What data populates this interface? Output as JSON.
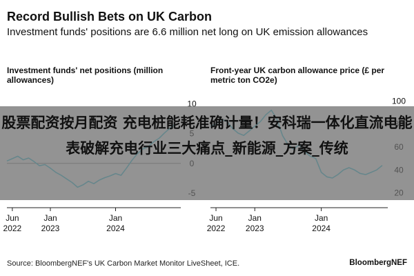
{
  "header": {
    "title": "Record Bullish Bets on UK Carbon",
    "subtitle": "Investment funds' positions are 6.6 million net long on UK emission allowances"
  },
  "overlay": {
    "text": "股票配资按月配资 充电桩能耗准确计量！安科瑞一体化直流电能表破解充电行业三大痛点_新能源_方案_传统"
  },
  "footer": {
    "source": "Source: BloombergNEF's UK Carbon Market Monitor LiveSheet, ICE.",
    "brand": "BloombergNEF"
  },
  "colors": {
    "line": "#5fd0e3",
    "axis": "#222222",
    "zero_line": "#9a9a9a"
  },
  "chart_data": [
    {
      "type": "line",
      "title": "Investment funds' net positions (million allowances)",
      "x_ticks": [
        "Jun 2022",
        "Jan 2023",
        "Jan 2024"
      ],
      "y_ticks": [
        "10",
        "5",
        "0",
        "-5"
      ],
      "ylim": [
        -6.5,
        12
      ],
      "x_range": [
        "2022-05",
        "2025-01"
      ],
      "grid": false,
      "series": [
        {
          "x": [
            "2022-05",
            "2022-06",
            "2022-07",
            "2022-08",
            "2022-09",
            "2022-10",
            "2022-11",
            "2022-12",
            "2023-01",
            "2023-02",
            "2023-03",
            "2023-04",
            "2023-05",
            "2023-06",
            "2023-07",
            "2023-08",
            "2023-09",
            "2023-10",
            "2023-11",
            "2023-12",
            "2024-01",
            "2024-02",
            "2024-03",
            "2024-04",
            "2024-05",
            "2024-06",
            "2024-07",
            "2024-08",
            "2024-09",
            "2024-10",
            "2024-11",
            "2024-12"
          ],
          "values": [
            0.4,
            0.8,
            1.2,
            0.6,
            0.9,
            0.3,
            -0.4,
            -0.2,
            -0.8,
            -1.5,
            -2.0,
            -2.6,
            -3.2,
            -4.0,
            -3.6,
            -3.0,
            -3.4,
            -2.8,
            -2.4,
            -2.1,
            -1.7,
            -2.0,
            -0.8,
            0.5,
            1.6,
            2.4,
            2.8,
            3.6,
            4.2,
            5.1,
            5.9,
            6.6
          ]
        }
      ]
    },
    {
      "type": "line",
      "title": "Front-year UK carbon allowance price (£ per metric ton CO2e)",
      "x_ticks": [
        "Jun 2022",
        "Jan 2023",
        "Jan 2024"
      ],
      "y_ticks": [
        "100",
        "80",
        "60",
        "40",
        "20"
      ],
      "ylim": [
        12,
        108
      ],
      "x_range": [
        "2022-05",
        "2025-01"
      ],
      "grid": false,
      "series": [
        {
          "x": [
            "2022-05",
            "2022-06",
            "2022-07",
            "2022-08",
            "2022-09",
            "2022-10",
            "2022-11",
            "2022-12",
            "2023-01",
            "2023-02",
            "2023-03",
            "2023-04",
            "2023-05",
            "2023-06",
            "2023-07",
            "2023-08",
            "2023-09",
            "2023-10",
            "2023-11",
            "2023-12",
            "2024-01",
            "2024-02",
            "2024-03",
            "2024-04",
            "2024-05",
            "2024-06",
            "2024-07",
            "2024-08",
            "2024-09",
            "2024-10",
            "2024-11",
            "2024-12"
          ],
          "values": [
            78,
            80,
            84,
            82,
            76,
            72,
            70,
            74,
            78,
            82,
            88,
            92,
            84,
            70,
            62,
            58,
            62,
            56,
            52,
            50,
            38,
            34,
            33,
            36,
            40,
            42,
            40,
            37,
            36,
            38,
            40,
            44
          ]
        }
      ]
    }
  ]
}
